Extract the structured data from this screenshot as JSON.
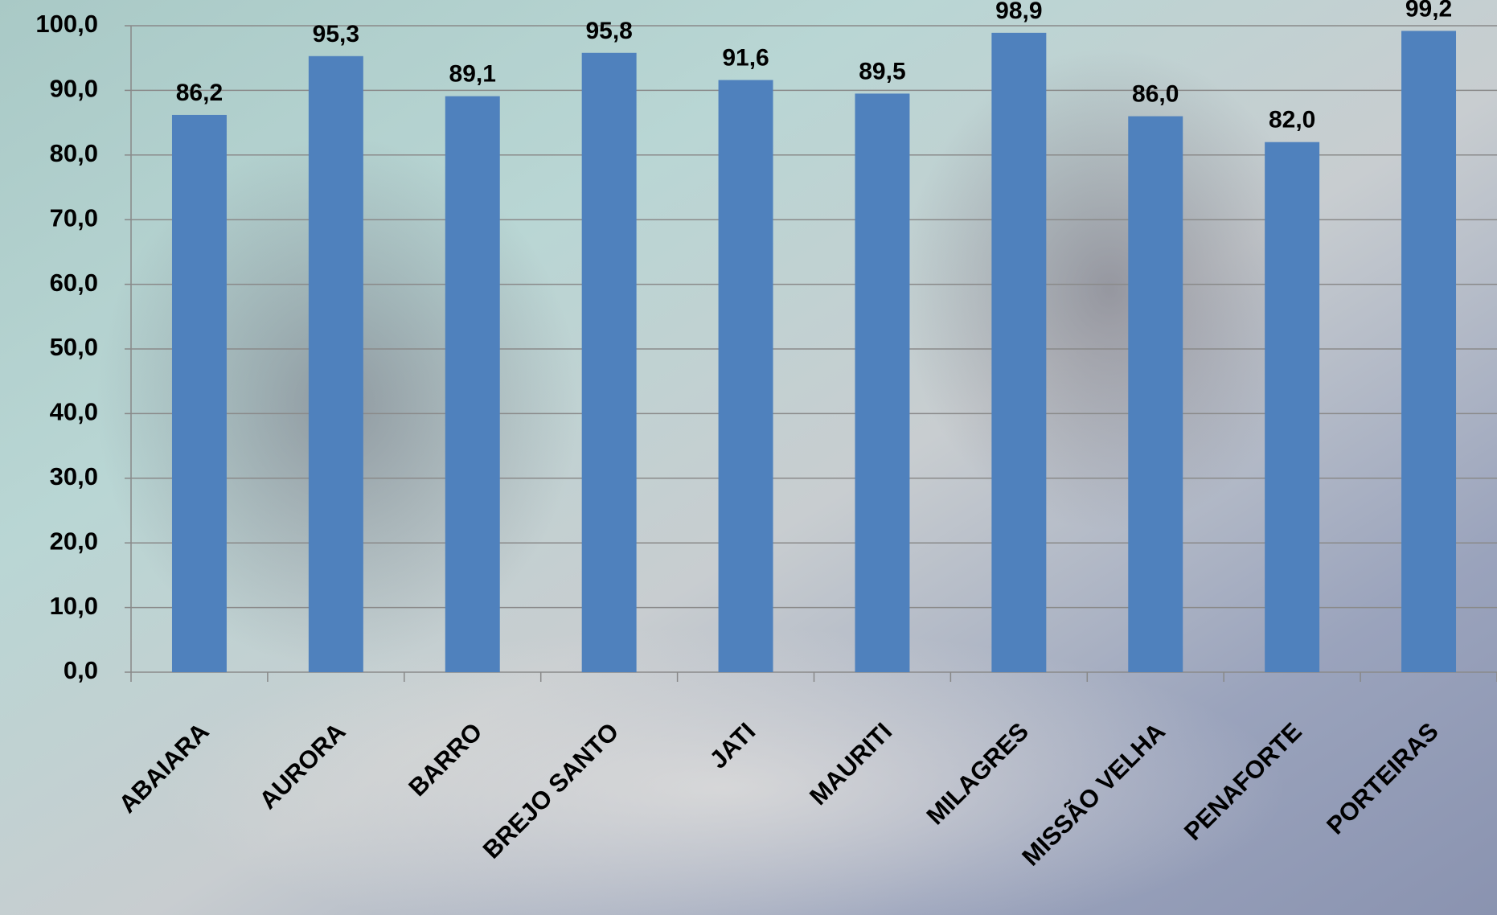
{
  "chart_data": {
    "type": "bar",
    "categories": [
      "ABAIARA",
      "AURORA",
      "BARRO",
      "BREJO SANTO",
      "JATI",
      "MAURITI",
      "MILAGRES",
      "MISSÃO VELHA",
      "PENAFORTE",
      "PORTEIRAS"
    ],
    "values": [
      86.2,
      95.3,
      89.1,
      95.8,
      91.6,
      89.5,
      98.9,
      86.0,
      82.0,
      99.2
    ],
    "value_labels": [
      "86,2",
      "95,3",
      "89,1",
      "95,8",
      "91,6",
      "89,5",
      "98,9",
      "86,0",
      "82,0",
      "99,2"
    ],
    "color": "#4f81bd",
    "ylim": [
      0,
      100
    ],
    "yticks": [
      {
        "value": 0,
        "label": "0,0"
      },
      {
        "value": 10,
        "label": "10,0"
      },
      {
        "value": 20,
        "label": "20,0"
      },
      {
        "value": 30,
        "label": "30,0"
      },
      {
        "value": 40,
        "label": "40,0"
      },
      {
        "value": 50,
        "label": "50,0"
      },
      {
        "value": 60,
        "label": "60,0"
      },
      {
        "value": 70,
        "label": "70,0"
      },
      {
        "value": 80,
        "label": "80,0"
      },
      {
        "value": 90,
        "label": "90,0"
      },
      {
        "value": 100,
        "label": "100,0"
      }
    ],
    "grid": true
  }
}
